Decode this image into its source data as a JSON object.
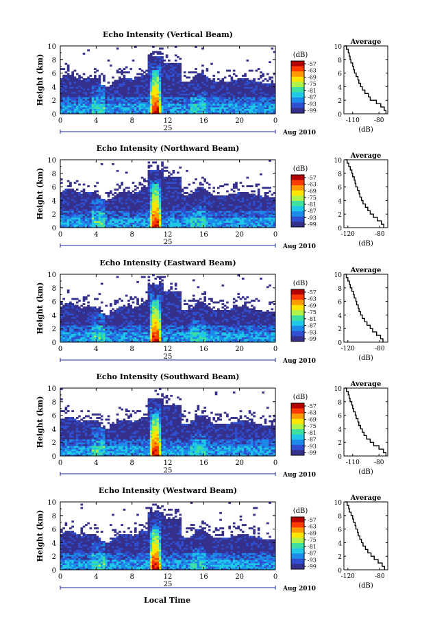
{
  "figure": {
    "xlabel": "Local Time",
    "colorbar_unit": "(dB)",
    "colorbar_ticks": [
      "-57",
      "-63",
      "-69",
      "-75",
      "-81",
      "-87",
      "-93",
      "-99"
    ],
    "colorbar_colors": [
      "#b40000",
      "#ff3a00",
      "#ff9a00",
      "#ffe600",
      "#aef24a",
      "#3ee0a0",
      "#1ec8e6",
      "#1c8ae8",
      "#2f4fd0",
      "#34308c"
    ],
    "date_label": "Aug 2010",
    "day_label": "25",
    "avg_title": "Average",
    "avg_xlabel": "(dB)"
  },
  "chart_data": [
    {
      "type": "heatmap",
      "title": "Echo Intensity (Vertical Beam)",
      "ylabel": "Height (km)",
      "xlim": [
        0,
        24
      ],
      "ylim": [
        0,
        10
      ],
      "xticks": [
        "0",
        "4",
        "8",
        "12",
        "16",
        "20",
        "0"
      ],
      "yticks": [
        "0",
        "2",
        "4",
        "6",
        "8",
        "10"
      ],
      "average": {
        "xticks": [
          "-110",
          "-80"
        ],
        "xlim": [
          -120,
          -70
        ],
        "height_km": [
          0,
          0.5,
          1,
          1.5,
          2,
          2.5,
          3,
          3.5,
          4,
          4.5,
          5,
          5.5,
          6,
          6.5,
          7,
          7.5,
          8,
          8.5,
          9,
          9.5,
          10
        ],
        "db": [
          -72,
          -74,
          -78,
          -83,
          -90,
          -92,
          -96,
          -99,
          -101,
          -103,
          -104,
          -106,
          -108,
          -109,
          -110,
          -112,
          -113,
          -114,
          -115,
          -117,
          -119
        ]
      }
    },
    {
      "type": "heatmap",
      "title": "Echo Intensity (Northward Beam)",
      "ylabel": "Height (km)",
      "xlim": [
        0,
        24
      ],
      "ylim": [
        0,
        10
      ],
      "xticks": [
        "0",
        "4",
        "8",
        "12",
        "16",
        "20",
        "0"
      ],
      "yticks": [
        "0",
        "2",
        "4",
        "6",
        "8",
        "10"
      ],
      "average": {
        "xticks": [
          "-120",
          "-80"
        ],
        "xlim": [
          -125,
          -70
        ],
        "height_km": [
          0,
          0.5,
          1,
          1.5,
          2,
          2.5,
          3,
          3.5,
          4,
          4.5,
          5,
          5.5,
          6,
          6.5,
          7,
          7.5,
          8,
          8.5,
          9,
          9.5,
          10
        ],
        "db": [
          -75,
          -78,
          -83,
          -88,
          -92,
          -95,
          -98,
          -101,
          -103,
          -105,
          -106,
          -108,
          -110,
          -111,
          -112,
          -114,
          -115,
          -117,
          -119,
          -121,
          -123
        ]
      }
    },
    {
      "type": "heatmap",
      "title": "Echo Intensity (Eastward Beam)",
      "ylabel": "Height (km)",
      "xlim": [
        0,
        24
      ],
      "ylim": [
        0,
        10
      ],
      "xticks": [
        "0",
        "4",
        "8",
        "12",
        "16",
        "20",
        "0"
      ],
      "yticks": [
        "0",
        "2",
        "4",
        "6",
        "8",
        "10"
      ],
      "average": {
        "xticks": [
          "-120",
          "-80"
        ],
        "xlim": [
          -125,
          -70
        ],
        "height_km": [
          0,
          0.5,
          1,
          1.5,
          2,
          2.5,
          3,
          3.5,
          4,
          4.5,
          5,
          5.5,
          6,
          6.5,
          7,
          7.5,
          8,
          8.5,
          9,
          9.5,
          10
        ],
        "db": [
          -76,
          -79,
          -84,
          -89,
          -92,
          -96,
          -99,
          -102,
          -104,
          -106,
          -107,
          -109,
          -110,
          -112,
          -113,
          -115,
          -117,
          -118,
          -120,
          -122,
          -123
        ]
      }
    },
    {
      "type": "heatmap",
      "title": "Echo Intensity (Southward Beam)",
      "ylabel": "Height (km)",
      "xlim": [
        0,
        24
      ],
      "ylim": [
        0,
        10
      ],
      "xticks": [
        "0",
        "4",
        "8",
        "12",
        "16",
        "20",
        "0"
      ],
      "yticks": [
        "0",
        "2",
        "4",
        "6",
        "8",
        "10"
      ],
      "average": {
        "xticks": [
          "-110",
          "-80"
        ],
        "xlim": [
          -120,
          -70
        ],
        "height_km": [
          0,
          0.5,
          1,
          1.5,
          2,
          2.5,
          3,
          3.5,
          4,
          4.5,
          5,
          5.5,
          6,
          6.5,
          7,
          7.5,
          8,
          8.5,
          9,
          9.5,
          10
        ],
        "db": [
          -72,
          -75,
          -80,
          -86,
          -90,
          -94,
          -97,
          -99,
          -101,
          -103,
          -104,
          -106,
          -107,
          -109,
          -110,
          -111,
          -113,
          -114,
          -115,
          -117,
          -119
        ]
      }
    },
    {
      "type": "heatmap",
      "title": "Echo Intensity (Westward Beam)",
      "ylabel": "Height (km)",
      "xlim": [
        0,
        24
      ],
      "ylim": [
        0,
        10
      ],
      "xticks": [
        "0",
        "4",
        "8",
        "12",
        "16",
        "20",
        "0"
      ],
      "yticks": [
        "0",
        "2",
        "4",
        "6",
        "8",
        "10"
      ],
      "average": {
        "xticks": [
          "-120",
          "-80"
        ],
        "xlim": [
          -125,
          -70
        ],
        "height_km": [
          0,
          0.5,
          1,
          1.5,
          2,
          2.5,
          3,
          3.5,
          4,
          4.5,
          5,
          5.5,
          6,
          6.5,
          7,
          7.5,
          8,
          8.5,
          9,
          9.5,
          10
        ],
        "db": [
          -74,
          -77,
          -82,
          -87,
          -91,
          -95,
          -98,
          -101,
          -103,
          -105,
          -107,
          -108,
          -110,
          -111,
          -113,
          -114,
          -116,
          -118,
          -119,
          -121,
          -123
        ]
      }
    }
  ]
}
